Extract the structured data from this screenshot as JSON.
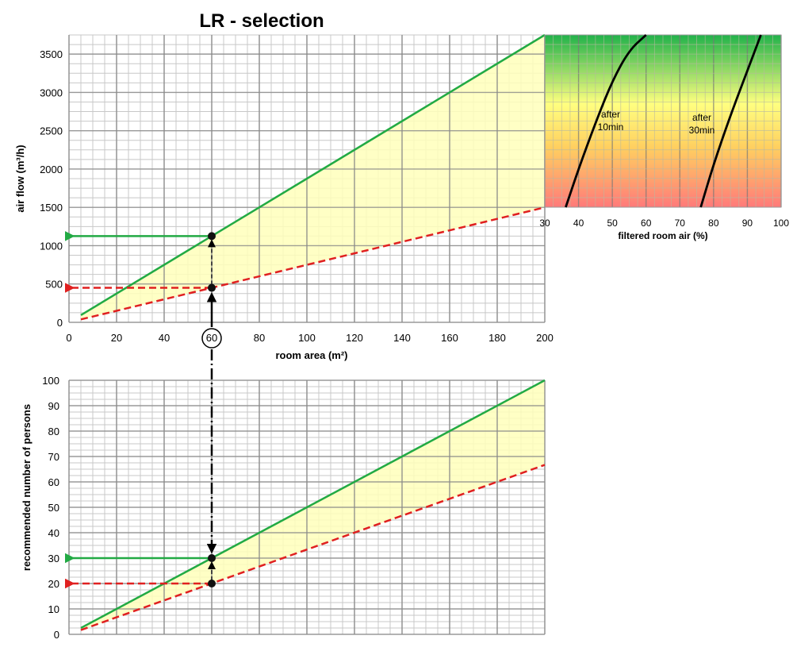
{
  "title": "LR - selection",
  "colors": {
    "max_line": "#22aa44",
    "min_line": "#e02020",
    "band": "#ffffbb",
    "grid_major": "#888888",
    "grid_minor": "#c8c8c8"
  },
  "chart_data": [
    {
      "id": "airflow",
      "type": "line",
      "xlabel": "room area (m²)",
      "ylabel": "air flow (m³/h)",
      "xlim": [
        0,
        200
      ],
      "ylim": [
        0,
        3750
      ],
      "xticks": [
        0,
        20,
        40,
        60,
        80,
        100,
        120,
        140,
        160,
        180,
        200
      ],
      "yticks": [
        0,
        500,
        1000,
        1500,
        2000,
        2500,
        3000,
        3500
      ],
      "grid": true,
      "series": [
        {
          "style": "solid-green",
          "x": [
            5,
            200
          ],
          "y": [
            94,
            3750
          ]
        },
        {
          "style": "dashed-red",
          "x": [
            5,
            200
          ],
          "y": [
            38,
            1500
          ]
        }
      ],
      "highlight": {
        "x": 60,
        "y_max": 1125,
        "y_min": 450,
        "x_label": "60"
      }
    },
    {
      "id": "filtration",
      "type": "line",
      "xlabel": "filtered room air (%)",
      "xlim": [
        30,
        100
      ],
      "ylim": [
        1500,
        3750
      ],
      "xticks": [
        30,
        40,
        50,
        60,
        70,
        80,
        90,
        100
      ],
      "grid": true,
      "background": "gradient red (bottom) to yellow to green (top)",
      "series": [
        {
          "label_lines": [
            "after",
            "10min"
          ],
          "x": [
            36.2,
            40,
            45,
            50,
            55,
            60
          ],
          "y": [
            1500,
            2000,
            2600,
            3150,
            3550,
            3750
          ]
        },
        {
          "label_lines": [
            "after",
            "30min"
          ],
          "x": [
            76.2,
            80,
            85,
            90,
            94
          ],
          "y": [
            1500,
            2060,
            2700,
            3280,
            3750
          ]
        }
      ]
    },
    {
      "id": "persons",
      "type": "line",
      "ylabel": "recommended number of persons",
      "xlim": [
        0,
        200
      ],
      "ylim": [
        0,
        100
      ],
      "yticks": [
        0,
        10,
        20,
        30,
        40,
        50,
        60,
        70,
        80,
        90,
        100
      ],
      "grid": true,
      "series": [
        {
          "style": "solid-green",
          "x": [
            5,
            200
          ],
          "y": [
            2.5,
            100
          ]
        },
        {
          "style": "dashed-red",
          "x": [
            5,
            200
          ],
          "y": [
            1.7,
            66.7
          ]
        }
      ],
      "highlight": {
        "x": 60,
        "y_max": 30,
        "y_min": 20
      }
    }
  ]
}
